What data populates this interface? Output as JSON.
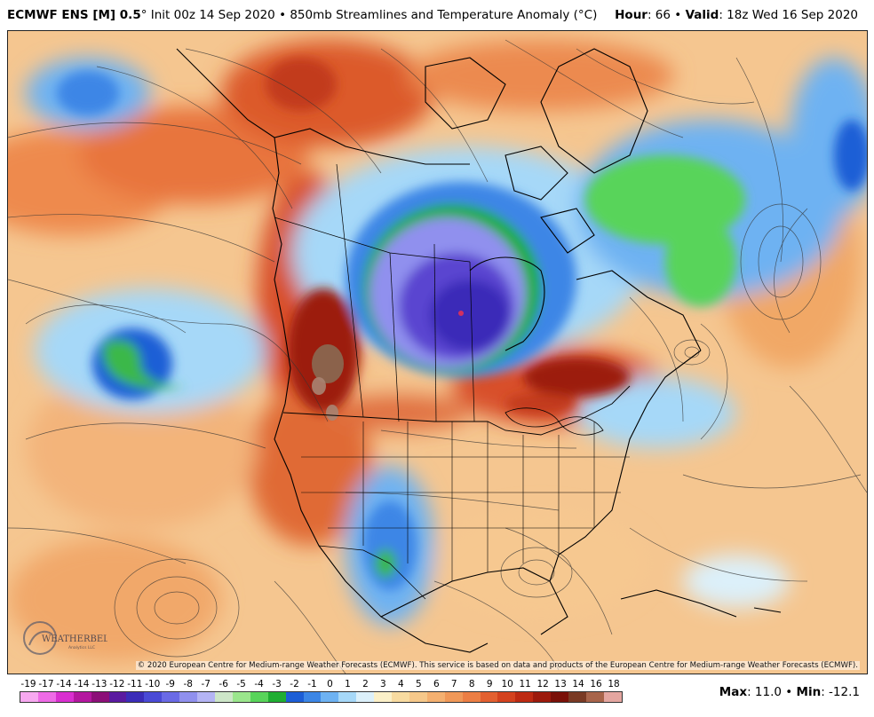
{
  "header": {
    "model": "ECMWF ENS [M] 0.5",
    "degree": "°",
    "init": "Init 00z 14 Sep 2020",
    "sep": "•",
    "product": "850mb Streamlines and Temperature Anomaly (°C)",
    "hour_label": "Hour",
    "hour_value": ": 66",
    "valid_label": "Valid",
    "valid_value": ": 18z Wed 16 Sep 2020"
  },
  "map": {
    "copyright": "© 2020 European Centre for Medium-range Weather Forecasts (ECMWF). This service is based on data and products of the European Centre for Medium-range Weather Forecasts (ECMWF).",
    "logo_text": "WEATHERBELL",
    "logo_subtext": "Analytics LLC",
    "anomaly_features": [
      {
        "name": "central-canada-cold-core",
        "sign": "cold",
        "anomaly_c": -12.1
      },
      {
        "name": "pacific-cold-pool",
        "sign": "cold",
        "anomaly_c": -6
      },
      {
        "name": "labrador-sea-cold",
        "sign": "cold",
        "anomaly_c": -6
      },
      {
        "name": "southern-plains-cold",
        "sign": "cold",
        "anomaly_c": -5
      },
      {
        "name": "pacific-northwest-warm",
        "sign": "warm",
        "anomaly_c": 11
      },
      {
        "name": "great-lakes-warm",
        "sign": "warm",
        "anomaly_c": 8
      },
      {
        "name": "alaska-warm",
        "sign": "warm",
        "anomaly_c": 7
      }
    ]
  },
  "colorbar": {
    "labels": [
      "-19",
      "-17",
      "-14",
      "-14",
      "-13",
      "-12",
      "-11",
      "-10",
      "-9",
      "-8",
      "-7",
      "-6",
      "-5",
      "-4",
      "-3",
      "-2",
      "-1",
      "0",
      "1",
      "2",
      "3",
      "4",
      "5",
      "6",
      "7",
      "8",
      "9",
      "10",
      "11",
      "12",
      "13",
      "14",
      "16",
      "18"
    ],
    "colors": [
      "#f7a8f0",
      "#ee6be6",
      "#d92fd0",
      "#b4179f",
      "#8c0f78",
      "#5a1aa0",
      "#3b2cb8",
      "#4a4ad6",
      "#6a6ae6",
      "#9090ee",
      "#b4b4f4",
      "#cde6c8",
      "#9ae68c",
      "#58d45a",
      "#1fae32",
      "#1d5ed6",
      "#3c86e6",
      "#6eb2f2",
      "#a6d8f8",
      "#dcf0fa",
      "#fbf0c8",
      "#f8dba0",
      "#f6c88a",
      "#f4b070",
      "#f09858",
      "#ec7e44",
      "#e36030",
      "#d4421e",
      "#bd2a12",
      "#9c1a0c",
      "#7a1008",
      "#7a3a24",
      "#a8644a",
      "#e4a6a0"
    ]
  },
  "stats": {
    "max_label": "Max",
    "max_value": ": 11.0",
    "sep": "•",
    "min_label": "Min",
    "min_value": ": -12.1"
  }
}
